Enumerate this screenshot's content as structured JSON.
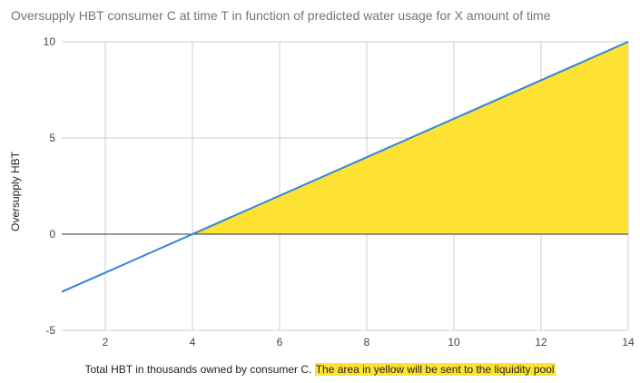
{
  "chart_data": {
    "type": "area",
    "title": "Oversupply HBT consumer C at time T in function of predicted water usage for X amount of time",
    "xlabel": "Total HBT in thousands owned by consumer C.",
    "xlabel_highlight": "The area in yellow will be sent to the liquidity pool",
    "ylabel": "Oversupply HBT",
    "xlim": [
      1,
      14
    ],
    "ylim": [
      -5,
      10
    ],
    "x_ticks": [
      2,
      4,
      6,
      8,
      10,
      12,
      14
    ],
    "y_ticks": [
      -5,
      0,
      5,
      10
    ],
    "grid": true,
    "series": [
      {
        "x": [
          1,
          14
        ],
        "y": [
          -3,
          10
        ],
        "color": "#3285d9"
      }
    ],
    "shaded_area": {
      "x": [
        4,
        14
      ],
      "y": [
        0,
        10
      ],
      "baseline": 0,
      "color": "#fde233"
    }
  }
}
